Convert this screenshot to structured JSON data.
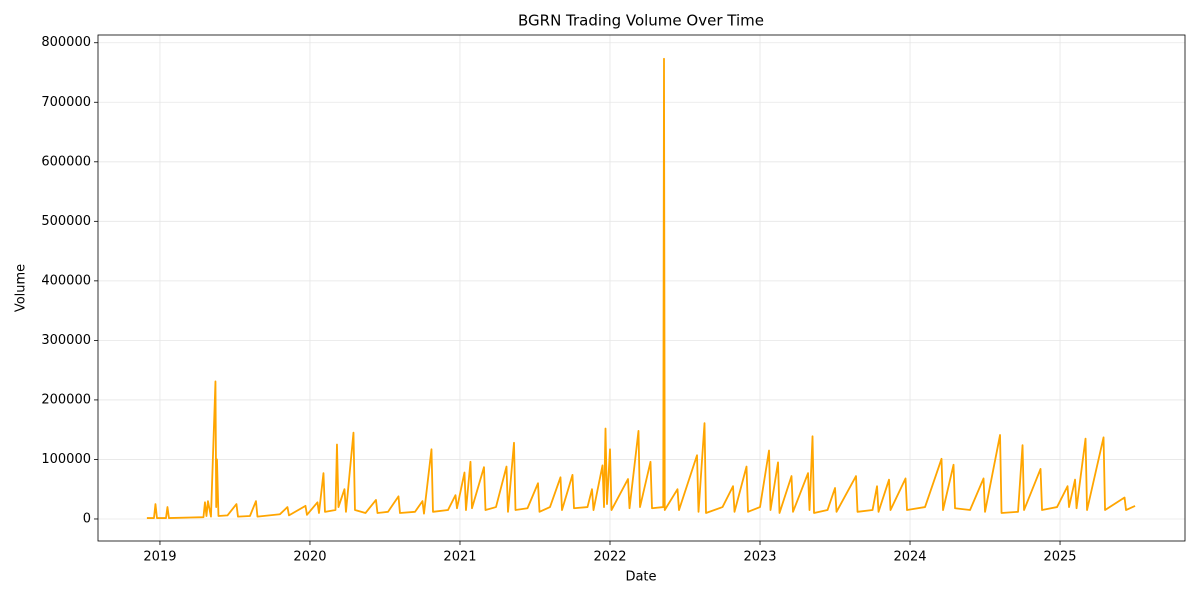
{
  "chart_data": {
    "type": "line",
    "title": "BGRN Trading Volume Over Time",
    "xlabel": "Date",
    "ylabel": "Volume",
    "x": [
      2018.913,
      2018.96,
      2018.97,
      2018.98,
      2019.04,
      2019.05,
      2019.06,
      2019.2,
      2019.29,
      2019.3,
      2019.31,
      2019.32,
      2019.34,
      2019.37,
      2019.375,
      2019.38,
      2019.39,
      2019.45,
      2019.51,
      2019.52,
      2019.6,
      2019.64,
      2019.65,
      2019.8,
      2019.85,
      2019.86,
      2019.97,
      2019.98,
      2020.05,
      2020.06,
      2020.09,
      2020.1,
      2020.17,
      2020.18,
      2020.19,
      2020.23,
      2020.24,
      2020.29,
      2020.3,
      2020.37,
      2020.44,
      2020.45,
      2020.52,
      2020.59,
      2020.6,
      2020.7,
      2020.75,
      2020.76,
      2020.81,
      2020.82,
      2020.92,
      2020.97,
      2020.98,
      2021.03,
      2021.04,
      2021.07,
      2021.08,
      2021.16,
      2021.17,
      2021.24,
      2021.31,
      2021.32,
      2021.36,
      2021.37,
      2021.45,
      2021.52,
      2021.53,
      2021.6,
      2021.67,
      2021.68,
      2021.75,
      2021.76,
      2021.85,
      2021.88,
      2021.89,
      2021.95,
      2021.96,
      2021.97,
      2021.98,
      2022.0,
      2022.01,
      2022.12,
      2022.13,
      2022.19,
      2022.2,
      2022.27,
      2022.28,
      2022.355,
      2022.36,
      2022.365,
      2022.45,
      2022.46,
      2022.58,
      2022.59,
      2022.63,
      2022.64,
      2022.75,
      2022.82,
      2022.83,
      2022.91,
      2022.92,
      2023.0,
      2023.06,
      2023.07,
      2023.12,
      2023.13,
      2023.21,
      2023.22,
      2023.32,
      2023.33,
      2023.35,
      2023.36,
      2023.45,
      2023.5,
      2023.51,
      2023.64,
      2023.65,
      2023.75,
      2023.78,
      2023.79,
      2023.86,
      2023.87,
      2023.97,
      2023.98,
      2024.1,
      2024.21,
      2024.22,
      2024.29,
      2024.3,
      2024.4,
      2024.49,
      2024.5,
      2024.6,
      2024.61,
      2024.72,
      2024.75,
      2024.76,
      2024.87,
      2024.88,
      2024.98,
      2025.05,
      2025.06,
      2025.1,
      2025.11,
      2025.17,
      2025.18,
      2025.29,
      2025.3,
      2025.43,
      2025.44,
      2025.5
    ],
    "series": [
      {
        "name": "Volume",
        "color": "#ffa500",
        "values": [
          1500,
          1500,
          25000,
          1500,
          1500,
          20000,
          1500,
          2500,
          3000,
          28000,
          5000,
          30000,
          4000,
          231000,
          20000,
          100000,
          5000,
          6000,
          25000,
          4000,
          5000,
          30000,
          4000,
          8000,
          20000,
          6000,
          22000,
          7000,
          28000,
          10000,
          77000,
          12000,
          15000,
          125000,
          20000,
          50000,
          12000,
          145000,
          15000,
          10000,
          32000,
          10000,
          12000,
          38000,
          10000,
          12000,
          30000,
          9000,
          117000,
          12000,
          15000,
          40000,
          18000,
          78000,
          15000,
          96000,
          18000,
          87000,
          15000,
          20000,
          88000,
          12000,
          128000,
          15000,
          18000,
          60000,
          12000,
          20000,
          70000,
          15000,
          74000,
          18000,
          20000,
          50000,
          15000,
          90000,
          20000,
          152000,
          25000,
          117000,
          15000,
          67000,
          18000,
          148000,
          20000,
          96000,
          18000,
          20000,
          773000,
          15000,
          50000,
          15000,
          107000,
          12000,
          161000,
          10000,
          20000,
          55000,
          12000,
          88000,
          12000,
          20000,
          115000,
          15000,
          95000,
          10000,
          72000,
          12000,
          77000,
          15000,
          139000,
          10000,
          15000,
          52000,
          12000,
          72000,
          12000,
          15000,
          55000,
          12000,
          66000,
          15000,
          68000,
          15000,
          20000,
          101000,
          15000,
          91000,
          18000,
          15000,
          68000,
          12000,
          141000,
          10000,
          12000,
          124000,
          15000,
          84000,
          15000,
          20000,
          55000,
          20000,
          66000,
          18000,
          135000,
          15000,
          137000,
          15000,
          36000,
          15000,
          22000
        ]
      }
    ],
    "xlim": [
      2018.587,
      2025.833
    ],
    "xticks": [
      2019,
      2020,
      2021,
      2022,
      2023,
      2024,
      2025
    ],
    "ylim": [
      -37000,
      813000
    ],
    "yticks": [
      0,
      100000,
      200000,
      300000,
      400000,
      500000,
      600000,
      700000,
      800000
    ],
    "grid": true
  }
}
